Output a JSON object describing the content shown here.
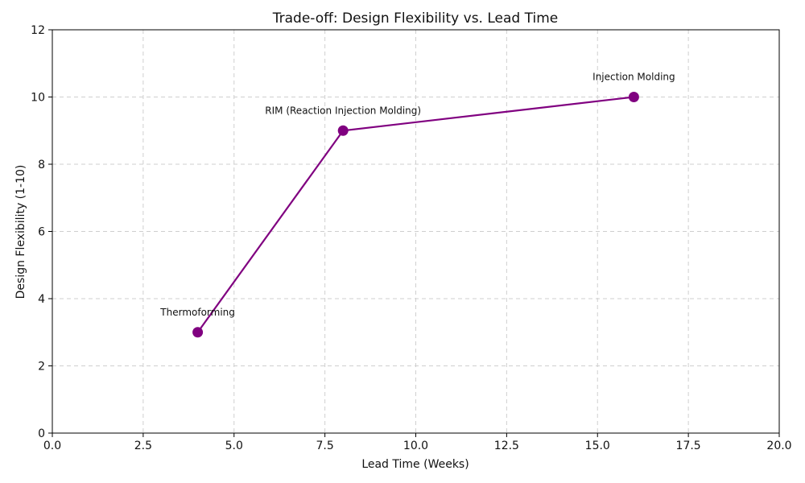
{
  "chart_data": {
    "type": "line",
    "title": "Trade-off: Design Flexibility vs. Lead Time",
    "xlabel": "Lead Time (Weeks)",
    "ylabel": "Design Flexibility (1-10)",
    "xlim": [
      0,
      20
    ],
    "ylim": [
      0,
      12
    ],
    "xticks": [
      0,
      2.5,
      5,
      7.5,
      10,
      12.5,
      15,
      17.5,
      20
    ],
    "xtick_labels": [
      "0.0",
      "2.5",
      "5.0",
      "7.5",
      "10.0",
      "12.5",
      "15.0",
      "17.5",
      "20.0"
    ],
    "yticks": [
      0,
      2,
      4,
      6,
      8,
      10,
      12
    ],
    "ytick_labels": [
      "0",
      "2",
      "4",
      "6",
      "8",
      "10",
      "12"
    ],
    "grid": true,
    "series": [
      {
        "color": "#800080",
        "points": [
          {
            "label": "Thermoforming",
            "x": 4,
            "y": 3
          },
          {
            "label": "RIM (Reaction Injection Molding)",
            "x": 8,
            "y": 9
          },
          {
            "label": "Injection Molding",
            "x": 16,
            "y": 10
          }
        ]
      }
    ]
  }
}
